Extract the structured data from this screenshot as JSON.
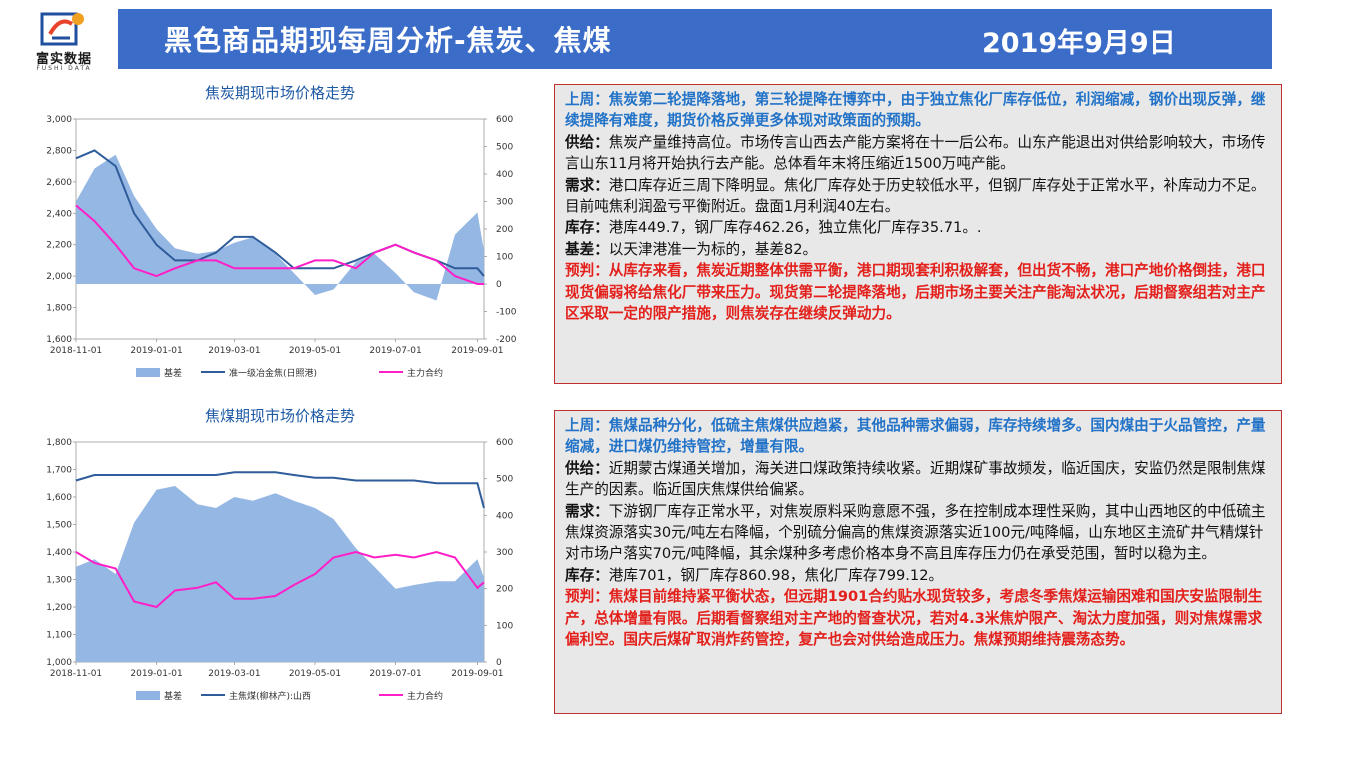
{
  "logo": {
    "name_cn": "富实数据",
    "name_en": "FUSHI DATA"
  },
  "header": {
    "title": "黑色商品期现每周分析-焦炭、焦煤",
    "date": "2019年9月9日"
  },
  "colors": {
    "header_bg": "#3b6cc8",
    "basis": "#8fb3e3",
    "spot": "#2f5d9b",
    "main": "#ff1fc8",
    "blue_text": "#2273c8",
    "red_text": "#e3201b"
  },
  "coke_text": {
    "last_week": "上周：焦炭第二轮提降落地，第三轮提降在博弈中，由于独立焦化厂库存低位，利润缩减，钢价出现反弹，继续提降有难度，期货价格反弹更多体现对政策面的预期。",
    "supply_label": "供给：",
    "supply": "焦炭产量维持高位。市场传言山西去产能方案将在十一后公布。山东产能退出对供给影响较大，市场传言山东11月将开始执行去产能。总体看年末将压缩近1500万吨产能。",
    "demand_label": "需求：",
    "demand": "港口库存近三周下降明显。焦化厂库存处于历史较低水平，但钢厂库存处于正常水平，补库动力不足。目前吨焦利润盈亏平衡附近。盘面1月利润40左右。",
    "inventory_label": "库存：",
    "inventory": "港库449.7，钢厂库存462.26，独立焦化厂库存35.71。.",
    "basis_label": "基差：",
    "basis": "以天津港准一为标的，基差82。",
    "forecast": "预判：从库存来看，焦炭近期整体供需平衡，港口期现套利积极解套，但出货不畅，港口产地价格倒挂，港口现货偏弱将给焦化厂带来压力。现货第二轮提降落地，后期市场主要关注产能淘汰状况，后期督察组若对主产区采取一定的限产措施，则焦炭存在继续反弹动力。"
  },
  "coal_text": {
    "last_week": "上周：焦煤品种分化，低硫主焦煤供应趋紧，其他品种需求偏弱，库存持续增多。国内煤由于火品管控，产量缩减，进口煤仍维持管控，增量有限。",
    "supply_label": "供给：",
    "supply": "近期蒙古煤通关增加，海关进口煤政策持续收紧。近期煤矿事故频发，临近国庆，安监仍然是限制焦煤生产的因素。临近国庆焦煤供给偏紧。",
    "demand_label": "需求：",
    "demand": "下游钢厂库存正常水平，对焦炭原料采购意愿不强，多在控制成本理性采购，其中山西地区的中低硫主焦煤资源落实30元/吨左右降幅，个别硫分偏高的焦煤资源落实近100元/吨降幅，山东地区主流矿井气精煤针对市场户落实70元/吨降幅，其余煤种多考虑价格本身不高且库存压力仍在承受范围，暂时以稳为主。",
    "inventory_label": "库存：",
    "inventory": "港库701，钢厂库存860.98，焦化厂库存799.12。",
    "forecast": "预判：焦煤目前维持紧平衡状态，但远期1901合约贴水现货较多，考虑冬季焦煤运输困难和国庆安监限制生产，总体增量有限。后期看督察组对主产地的督查状况，若对4.3米焦炉限产、淘汰力度加强，则对焦煤需求偏利空。国庆后煤矿取消炸药管控，复产也会对供给造成压力。焦煤预期维持震荡态势。"
  },
  "chart_data": [
    {
      "type": "line",
      "title": "焦炭期现市场价格走势",
      "x_ticks": [
        "2018-11-01",
        "2019-01-01",
        "2019-03-01",
        "2019-05-01",
        "2019-07-01",
        "2019-09-01"
      ],
      "left_axis": {
        "ticks": [
          "1,600",
          "1,800",
          "2,000",
          "2,200",
          "2,400",
          "2,600",
          "2,800",
          "3,000"
        ],
        "range": [
          1600,
          3000
        ]
      },
      "right_axis": {
        "ticks": [
          "-200",
          "-100",
          "0",
          "100",
          "200",
          "300",
          "400",
          "500",
          "600"
        ],
        "range": [
          -200,
          600
        ]
      },
      "legend": [
        "基差",
        "准一级冶金焦(日照港)",
        "主力合约"
      ],
      "x": [
        "2018-11-01",
        "2018-11-15",
        "2018-12-01",
        "2018-12-15",
        "2019-01-01",
        "2019-01-15",
        "2019-02-01",
        "2019-02-15",
        "2019-03-01",
        "2019-03-15",
        "2019-04-01",
        "2019-04-15",
        "2019-05-01",
        "2019-05-15",
        "2019-06-01",
        "2019-06-15",
        "2019-07-01",
        "2019-07-15",
        "2019-08-01",
        "2019-08-15",
        "2019-09-01",
        "2019-09-06"
      ],
      "series": [
        {
          "name": "基差",
          "type": "area",
          "axis": "right",
          "values": [
            300,
            420,
            470,
            320,
            200,
            130,
            110,
            120,
            150,
            170,
            110,
            40,
            -40,
            -20,
            80,
            110,
            40,
            -30,
            -60,
            180,
            260,
            120
          ]
        },
        {
          "name": "准一级冶金焦(日照港)",
          "type": "line",
          "axis": "left",
          "values": [
            2750,
            2800,
            2700,
            2400,
            2200,
            2100,
            2100,
            2150,
            2250,
            2250,
            2150,
            2050,
            2050,
            2050,
            2100,
            2150,
            2200,
            2150,
            2100,
            2050,
            2050,
            2000
          ]
        },
        {
          "name": "主力合约",
          "type": "line",
          "axis": "left",
          "values": [
            2450,
            2350,
            2200,
            2050,
            2000,
            2050,
            2100,
            2100,
            2050,
            2050,
            2050,
            2050,
            2100,
            2100,
            2050,
            2150,
            2200,
            2150,
            2100,
            2000,
            1950,
            1950
          ]
        }
      ]
    },
    {
      "type": "line",
      "title": "焦煤期现市场价格走势",
      "x_ticks": [
        "2018-11-01",
        "2019-01-01",
        "2019-03-01",
        "2019-05-01",
        "2019-07-01",
        "2019-09-01"
      ],
      "left_axis": {
        "ticks": [
          "1,000",
          "1,100",
          "1,200",
          "1,300",
          "1,400",
          "1,500",
          "1,600",
          "1,700",
          "1,800"
        ],
        "range": [
          1000,
          1800
        ]
      },
      "right_axis": {
        "ticks": [
          "0",
          "100",
          "200",
          "300",
          "400",
          "500",
          "600"
        ],
        "range": [
          0,
          600
        ]
      },
      "legend": [
        "基差",
        "主焦煤(柳林产):山西",
        "主力合约"
      ],
      "x": [
        "2018-11-01",
        "2018-11-15",
        "2018-12-01",
        "2018-12-15",
        "2019-01-01",
        "2019-01-15",
        "2019-02-01",
        "2019-02-15",
        "2019-03-01",
        "2019-03-15",
        "2019-04-01",
        "2019-04-15",
        "2019-05-01",
        "2019-05-15",
        "2019-06-01",
        "2019-06-15",
        "2019-07-01",
        "2019-07-15",
        "2019-08-01",
        "2019-08-15",
        "2019-09-01",
        "2019-09-06"
      ],
      "series": [
        {
          "name": "基差",
          "type": "area",
          "axis": "right",
          "values": [
            260,
            280,
            240,
            380,
            470,
            480,
            430,
            420,
            450,
            440,
            460,
            440,
            420,
            390,
            310,
            260,
            200,
            210,
            220,
            220,
            280,
            230
          ]
        },
        {
          "name": "主焦煤(柳林产):山西",
          "type": "line",
          "axis": "left",
          "values": [
            1660,
            1680,
            1680,
            1680,
            1680,
            1680,
            1680,
            1680,
            1690,
            1690,
            1690,
            1680,
            1670,
            1670,
            1660,
            1660,
            1660,
            1660,
            1650,
            1650,
            1650,
            1560
          ]
        },
        {
          "name": "主力合约",
          "type": "line",
          "axis": "left",
          "values": [
            1400,
            1360,
            1340,
            1220,
            1200,
            1260,
            1270,
            1290,
            1230,
            1230,
            1240,
            1280,
            1320,
            1380,
            1400,
            1380,
            1390,
            1380,
            1400,
            1380,
            1270,
            1290
          ]
        }
      ]
    }
  ]
}
